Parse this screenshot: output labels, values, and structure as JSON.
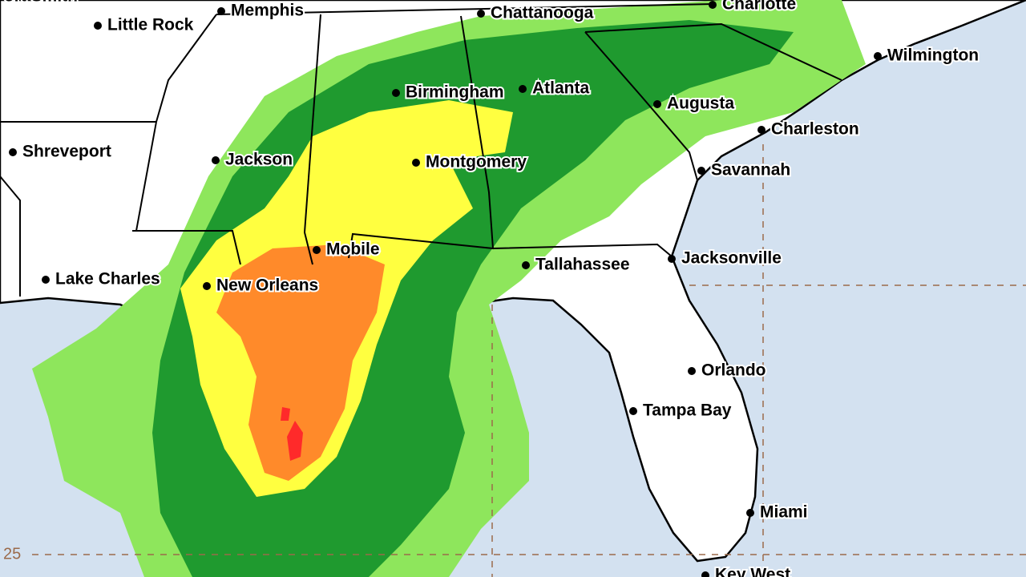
{
  "cities": [
    "Fort Smith",
    "Little Rock",
    "Memphis",
    "Chattanooga",
    "Charlotte",
    "Wilmington",
    "Birmingham",
    "Atlanta",
    "Augusta",
    "Charleston",
    "Shreveport",
    "Jackson",
    "Montgomery",
    "Savannah",
    "Mobile",
    "Tallahassee",
    "Jacksonville",
    "Lake Charles",
    "New Orleans",
    "Orlando",
    "Tampa Bay",
    "Miami",
    "Key West"
  ],
  "grid_labels": [
    "25"
  ]
}
